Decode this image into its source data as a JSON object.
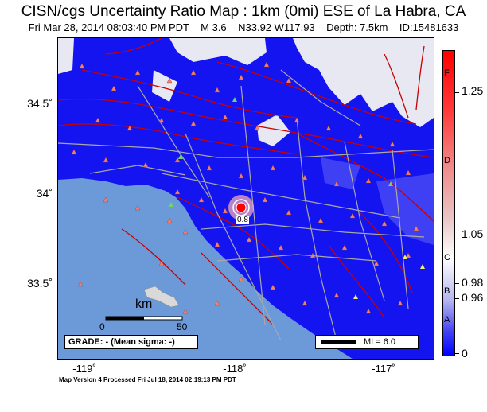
{
  "title": "CISN/cgs Uncertainty Ratio Map : 1km (0mi) ESE of La Habra, CA",
  "subtitle": "Fri Mar 28, 2014 08:03:40 PM PDT    M 3.6    N33.92 W117.93    Depth: 7.5km    ID:15481633",
  "latitude_labels": [
    "34.5˚",
    "34˚",
    "33.5˚"
  ],
  "longitude_labels": [
    "-119˚",
    "-118˚",
    "-117˚"
  ],
  "colorbar": {
    "grades": [
      "F",
      "D",
      "C",
      "B",
      "A"
    ],
    "values": [
      "1.25",
      "1.05",
      "0.98",
      "0.96",
      "0"
    ]
  },
  "scale_bar": {
    "unit": "km",
    "start": "0",
    "end": "50"
  },
  "grade_text": "GRADE: - (Mean sigma: -)",
  "mi_legend": "MI = 6.0",
  "epicenter_label": "0.8",
  "footer": "Map Version 4 Processed Fri Jul 18, 2014 02:19:13 PM PDT",
  "colors": {
    "ocean": "#6c9ad9",
    "low_uncertainty": "#0000ff",
    "high_uncertainty": "#ff0000",
    "faults": "#c80000",
    "roads": "#a9a9a9",
    "stations": "#f08070"
  }
}
